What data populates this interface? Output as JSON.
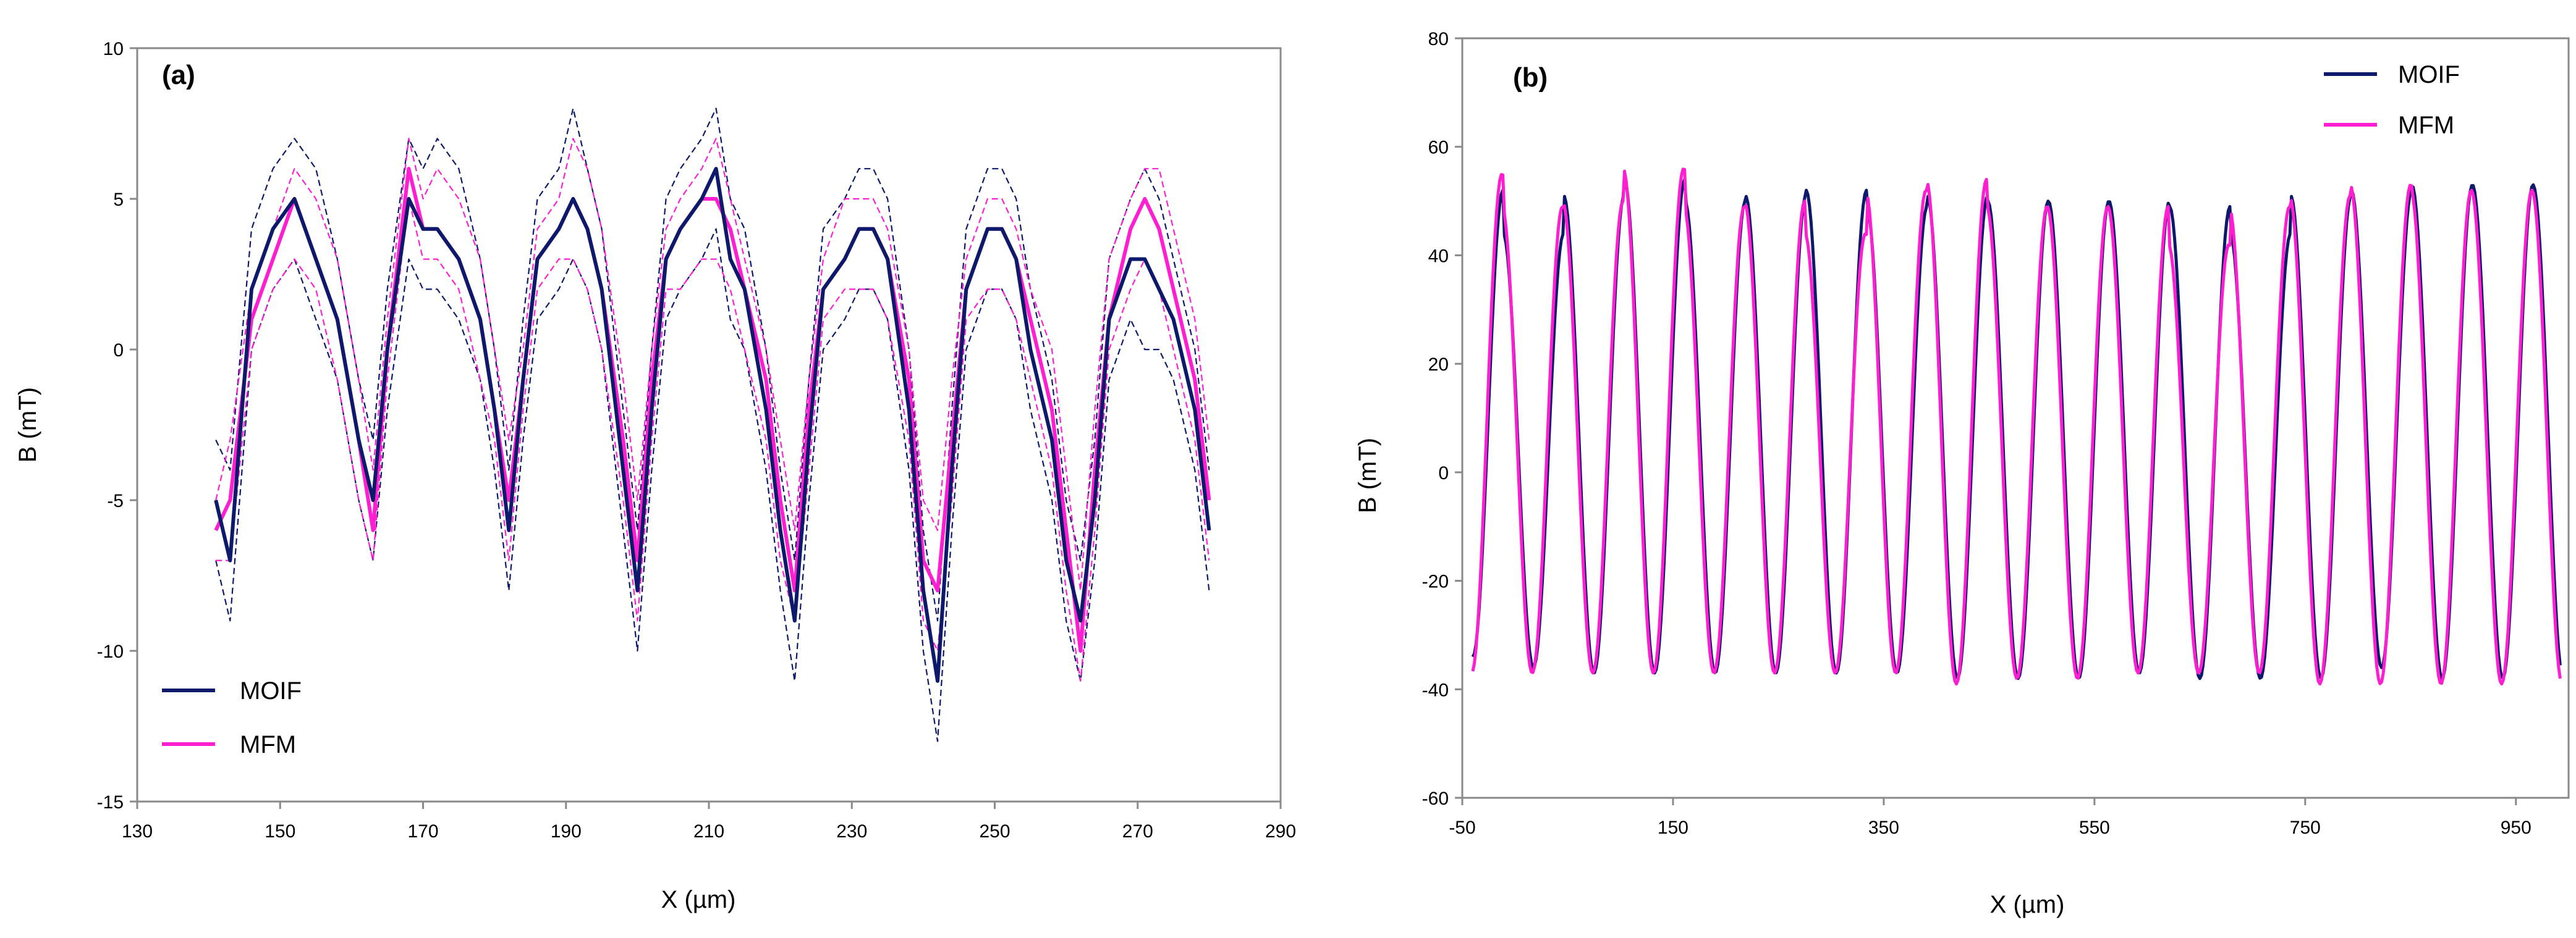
{
  "chart_data": [
    {
      "type": "line",
      "panel_label": "(a)",
      "xlabel": "X (µm)",
      "ylabel": "B (mT)",
      "xlim": [
        130,
        290
      ],
      "ylim": [
        -15,
        10
      ],
      "xticks": [
        "130",
        "150",
        "170",
        "190",
        "210",
        "230",
        "250",
        "270",
        "290"
      ],
      "yticks": [
        "10",
        "5",
        "0",
        "-5",
        "-10",
        "-15"
      ],
      "legend": {
        "position": "bottom-left",
        "entries": [
          "MOIF",
          "MFM"
        ]
      },
      "colors": {
        "MOIF": "#0d1a6b",
        "MFM": "#ff1fd1"
      },
      "x": [
        141,
        143,
        146,
        149,
        152,
        155,
        158,
        161,
        163,
        165,
        168,
        170,
        172,
        175,
        178,
        180,
        182,
        184,
        186,
        189,
        191,
        193,
        195,
        198,
        200,
        202,
        204,
        206,
        209,
        211,
        213,
        215,
        218,
        220,
        222,
        224,
        226,
        229,
        231,
        233,
        235,
        238,
        240,
        242,
        244,
        246,
        249,
        251,
        253,
        255,
        258,
        260,
        262,
        264,
        266,
        269,
        271,
        273,
        275,
        278,
        280
      ],
      "series": [
        {
          "name": "MOIF",
          "style": "solid",
          "values": [
            -5,
            -7,
            2,
            4,
            5,
            3,
            1,
            -3,
            -5,
            0,
            5,
            4,
            4,
            3,
            1,
            -2,
            -6,
            -1,
            3,
            4,
            5,
            4,
            2,
            -4,
            -8,
            -2,
            3,
            4,
            5,
            6,
            3,
            2,
            -2,
            -6,
            -9,
            -3,
            2,
            3,
            4,
            4,
            3,
            -2,
            -8,
            -11,
            -4,
            2,
            4,
            4,
            3,
            0,
            -3,
            -7,
            -9,
            -5,
            1,
            3,
            3,
            2,
            1,
            -2,
            -6
          ]
        },
        {
          "name": "MFM",
          "style": "solid",
          "values": [
            -6,
            -5,
            1,
            3,
            5,
            3,
            1,
            -3,
            -6,
            0,
            6,
            4,
            4,
            3,
            1,
            -2,
            -5,
            -1,
            3,
            4,
            5,
            4,
            2,
            -3,
            -7,
            -1,
            3,
            4,
            5,
            5,
            4,
            2,
            -1,
            -5,
            -8,
            -2,
            2,
            3,
            4,
            4,
            3,
            -1,
            -7,
            -8,
            -3,
            2,
            4,
            4,
            3,
            1,
            -2,
            -6,
            -10,
            -4,
            1,
            4,
            5,
            4,
            2,
            -1,
            -5
          ]
        },
        {
          "name": "MOIF upper",
          "style": "dashed-thin",
          "values": [
            -3,
            -4,
            4,
            6,
            7,
            6,
            3,
            -1,
            -3,
            2,
            7,
            6,
            7,
            6,
            3,
            0,
            -4,
            1,
            5,
            6,
            8,
            6,
            4,
            -2,
            -6,
            0,
            5,
            6,
            7,
            8,
            5,
            4,
            0,
            -4,
            -7,
            -1,
            4,
            5,
            6,
            6,
            5,
            0,
            -6,
            -9,
            -2,
            4,
            6,
            6,
            5,
            2,
            -1,
            -5,
            -7,
            -3,
            3,
            5,
            6,
            5,
            3,
            0,
            -4
          ]
        },
        {
          "name": "MOIF lower",
          "style": "dashed-thin",
          "values": [
            -7,
            -9,
            0,
            2,
            3,
            1,
            -1,
            -5,
            -7,
            -2,
            3,
            2,
            2,
            1,
            -1,
            -4,
            -8,
            -3,
            1,
            2,
            3,
            2,
            0,
            -6,
            -10,
            -4,
            1,
            2,
            3,
            4,
            1,
            0,
            -4,
            -8,
            -11,
            -5,
            0,
            1,
            2,
            2,
            1,
            -4,
            -10,
            -13,
            -6,
            0,
            2,
            2,
            1,
            -2,
            -5,
            -9,
            -11,
            -7,
            -1,
            1,
            0,
            0,
            -1,
            -4,
            -8
          ]
        },
        {
          "name": "MFM upper",
          "style": "dashed-thin",
          "values": [
            -5,
            -3,
            2,
            4,
            6,
            5,
            3,
            -1,
            -4,
            1,
            7,
            5,
            6,
            5,
            3,
            0,
            -3,
            0,
            4,
            5,
            7,
            6,
            4,
            -1,
            -5,
            0,
            4,
            5,
            6,
            7,
            5,
            3,
            0,
            -3,
            -6,
            -1,
            3,
            5,
            5,
            5,
            4,
            0,
            -5,
            -6,
            -1,
            3,
            5,
            5,
            4,
            2,
            0,
            -4,
            -8,
            -2,
            3,
            5,
            6,
            6,
            4,
            1,
            -3
          ]
        },
        {
          "name": "MFM lower",
          "style": "dashed-thin",
          "values": [
            -7,
            -7,
            0,
            2,
            3,
            2,
            -1,
            -5,
            -7,
            -1,
            5,
            3,
            3,
            2,
            -1,
            -3,
            -7,
            -2,
            2,
            3,
            3,
            2,
            0,
            -5,
            -9,
            -3,
            2,
            2,
            3,
            3,
            2,
            0,
            -3,
            -7,
            -9,
            -4,
            1,
            2,
            2,
            2,
            1,
            -3,
            -9,
            -10,
            -5,
            1,
            2,
            2,
            1,
            -1,
            -4,
            -8,
            -11,
            -6,
            0,
            2,
            3,
            2,
            0,
            -3,
            -7
          ]
        }
      ]
    },
    {
      "type": "line",
      "panel_label": "(b)",
      "xlabel": "X (µm)",
      "ylabel": "B (mT)",
      "xlim": [
        -50,
        1000
      ],
      "ylim": [
        -60,
        80
      ],
      "xticks": [
        "-50",
        "150",
        "350",
        "550",
        "750",
        "950"
      ],
      "yticks": [
        "80",
        "60",
        "40",
        "20",
        "0",
        "-20",
        "-40",
        "-60"
      ],
      "legend": {
        "position": "top-right",
        "entries": [
          "MOIF",
          "MFM"
        ]
      },
      "colors": {
        "MOIF": "#0d1a6b",
        "MFM": "#ff1fd1"
      },
      "wave": {
        "x_start": -40,
        "x_end": 993,
        "period": 57.5,
        "baseline": 7,
        "amplitude": 45
      },
      "series": [
        {
          "name": "MOIF",
          "peaks": [
            52,
            44,
            51,
            54,
            50,
            51,
            52,
            49,
            51,
            50,
            50,
            50,
            49,
            44,
            51,
            52,
            53
          ],
          "troughs": [
            -34,
            -36,
            -37,
            -37,
            -37,
            -37,
            -37,
            -37,
            -38,
            -38,
            -38,
            -37,
            -38,
            -38,
            -38,
            -36,
            -38
          ]
        },
        {
          "name": "MFM",
          "peaks": [
            55,
            49,
            50,
            56,
            49,
            50,
            44,
            52,
            54,
            49,
            49,
            49,
            42,
            49,
            51,
            53,
            52
          ],
          "troughs": [
            -37,
            -37,
            -37,
            -37,
            -37,
            -37,
            -37,
            -37,
            -39,
            -38,
            -38,
            -37,
            -37,
            -37,
            -39,
            -39,
            -39
          ]
        }
      ]
    }
  ]
}
